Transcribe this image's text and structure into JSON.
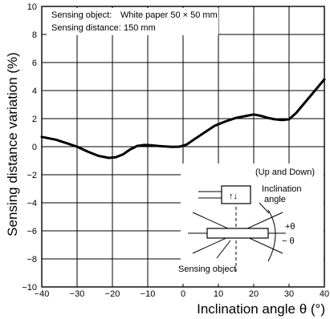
{
  "chart_data": {
    "type": "line",
    "xlabel": "Inclination angle θ (°)",
    "ylabel": "Sensing distance variation (%)",
    "xlim": [
      -40,
      40
    ],
    "ylim": [
      -10,
      10
    ],
    "x_ticks": [
      "−40",
      "−30",
      "−20",
      "−10",
      "0",
      "10",
      "20",
      "30",
      "40"
    ],
    "y_ticks": [
      "10",
      "8",
      "6",
      "4",
      "2",
      "0",
      "−2",
      "−4",
      "−6",
      "−8",
      "−10"
    ],
    "grid": true,
    "annotations": {
      "object_label": "Sensing object:",
      "object_value": "White paper 50 × 50 mm",
      "distance_label": "Sensing distance:",
      "distance_value": "150 mm"
    },
    "inset": {
      "mode_label": "(Up and Down)",
      "angle_label_line1": "Inclination",
      "angle_label_line2": "angle",
      "plus_theta": "+θ",
      "minus_theta": "− θ",
      "object_label": "Sensing object",
      "arrows": "↑↓"
    },
    "series": [
      {
        "x": [
          -40,
          -36,
          -33,
          -30,
          -27,
          -24,
          -21,
          -19,
          -17,
          -15,
          -13,
          -11,
          -9,
          -7,
          -5,
          -3,
          -1,
          1,
          3,
          6,
          9,
          12,
          15,
          18,
          20,
          22,
          24,
          26,
          28,
          30,
          32,
          34,
          36,
          38,
          40
        ],
        "y": [
          0.7,
          0.5,
          0.25,
          0.0,
          -0.35,
          -0.65,
          -0.8,
          -0.75,
          -0.55,
          -0.2,
          0.05,
          0.12,
          0.1,
          0.05,
          0.02,
          -0.02,
          0.0,
          0.15,
          0.5,
          1.0,
          1.5,
          1.8,
          2.05,
          2.2,
          2.3,
          2.2,
          2.05,
          1.95,
          1.9,
          1.95,
          2.4,
          3.0,
          3.6,
          4.2,
          4.8
        ]
      }
    ]
  }
}
